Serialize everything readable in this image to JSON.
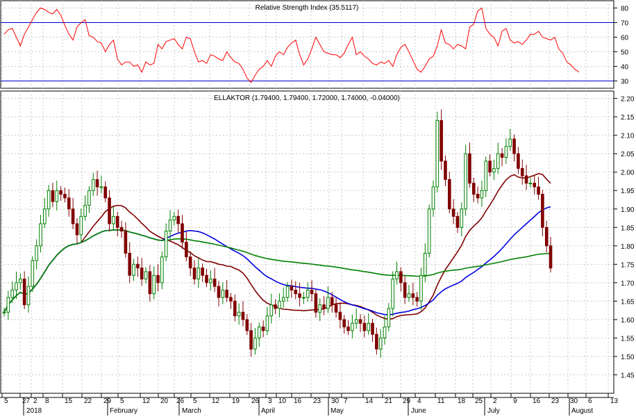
{
  "chart_data": [
    {
      "type": "line",
      "title": "Relative Strength Index (35.5117)",
      "ylim": [
        25,
        85
      ],
      "yticks": [
        30,
        40,
        50,
        60,
        70,
        80
      ],
      "bands": [
        70,
        30
      ],
      "band_color": "#0000cc",
      "line_color": "#ff0000",
      "grid": true,
      "series": [
        {
          "values": [
            62,
            65,
            66,
            60,
            54,
            62,
            67,
            72,
            77,
            80,
            79,
            77,
            76,
            79,
            75,
            68,
            62,
            58,
            67,
            70,
            72,
            61,
            60,
            57,
            56,
            50,
            55,
            58,
            45,
            41,
            43,
            43,
            40,
            41,
            36,
            43,
            41,
            42,
            55,
            52,
            57,
            58,
            59,
            55,
            52,
            60,
            59,
            50,
            43,
            44,
            42,
            48,
            47,
            45,
            44,
            50,
            46,
            43,
            42,
            38,
            32,
            29,
            34,
            38,
            40,
            44,
            40,
            47,
            50,
            48,
            53,
            56,
            58,
            48,
            41,
            45,
            52,
            60,
            55,
            50,
            49,
            48,
            48,
            46,
            49,
            55,
            60,
            48,
            50,
            47,
            45,
            42,
            41,
            43,
            42,
            44,
            40,
            48,
            53,
            55,
            50,
            44,
            38,
            36,
            40,
            45,
            47,
            54,
            65,
            56,
            55,
            52,
            55,
            54,
            52,
            67,
            69,
            78,
            80,
            66,
            62,
            60,
            54,
            64,
            66,
            58,
            56,
            57,
            55,
            58,
            62,
            62,
            64,
            60,
            59,
            58,
            60,
            52,
            49,
            43,
            41,
            38,
            36
          ]
        }
      ]
    },
    {
      "type": "candlestick",
      "title": "ELLAKTOR (1.79400, 1.79400, 1.72000, 1.74000, -0.04000)",
      "ylim": [
        1.4,
        2.22
      ],
      "yticks": [
        1.45,
        1.5,
        1.55,
        1.6,
        1.65,
        1.7,
        1.75,
        1.8,
        1.85,
        1.9,
        1.95,
        2.0,
        2.05,
        2.1,
        2.15,
        2.2
      ],
      "up_color": "#008000",
      "down_color": "#800000",
      "x_day_labels": [
        "5",
        "27",
        "2",
        "8",
        "15",
        "22",
        "29",
        "5",
        "12",
        "20",
        "26",
        "5",
        "12",
        "19",
        "26",
        "3",
        "10",
        "16",
        "23",
        "30",
        "7",
        "14",
        "21",
        "29",
        "4",
        "11",
        "18",
        "25",
        "2",
        "9",
        "16",
        "23",
        "30",
        "6",
        "13"
      ],
      "x_month_labels": [
        "2018",
        "February",
        "March",
        "April",
        "May",
        "June",
        "July",
        "August"
      ],
      "close": [
        1.62,
        1.66,
        1.68,
        1.7,
        1.71,
        1.64,
        1.69,
        1.76,
        1.8,
        1.86,
        1.9,
        1.95,
        1.92,
        1.95,
        1.94,
        1.93,
        1.9,
        1.86,
        1.83,
        1.88,
        1.91,
        1.95,
        1.98,
        1.96,
        1.96,
        1.93,
        1.86,
        1.88,
        1.85,
        1.84,
        1.78,
        1.72,
        1.75,
        1.74,
        1.71,
        1.73,
        1.67,
        1.72,
        1.7,
        1.77,
        1.84,
        1.87,
        1.88,
        1.86,
        1.81,
        1.77,
        1.74,
        1.71,
        1.74,
        1.72,
        1.7,
        1.71,
        1.69,
        1.66,
        1.68,
        1.66,
        1.65,
        1.61,
        1.62,
        1.6,
        1.57,
        1.52,
        1.55,
        1.58,
        1.57,
        1.61,
        1.64,
        1.63,
        1.65,
        1.66,
        1.69,
        1.68,
        1.67,
        1.66,
        1.66,
        1.68,
        1.67,
        1.62,
        1.64,
        1.63,
        1.66,
        1.64,
        1.62,
        1.6,
        1.58,
        1.57,
        1.59,
        1.6,
        1.59,
        1.57,
        1.59,
        1.56,
        1.52,
        1.55,
        1.58,
        1.63,
        1.71,
        1.73,
        1.7,
        1.66,
        1.67,
        1.66,
        1.65,
        1.72,
        1.78,
        1.9,
        1.96,
        2.14,
        2.03,
        1.98,
        1.9,
        1.88,
        1.85,
        1.9,
        2.05,
        1.97,
        1.94,
        1.93,
        1.95,
        2.03,
        2.0,
        2.01,
        2.05,
        2.04,
        2.07,
        2.09,
        2.05,
        2.01,
        1.99,
        1.97,
        1.97,
        1.96,
        1.94,
        1.85,
        1.8,
        1.74
      ]
    }
  ]
}
